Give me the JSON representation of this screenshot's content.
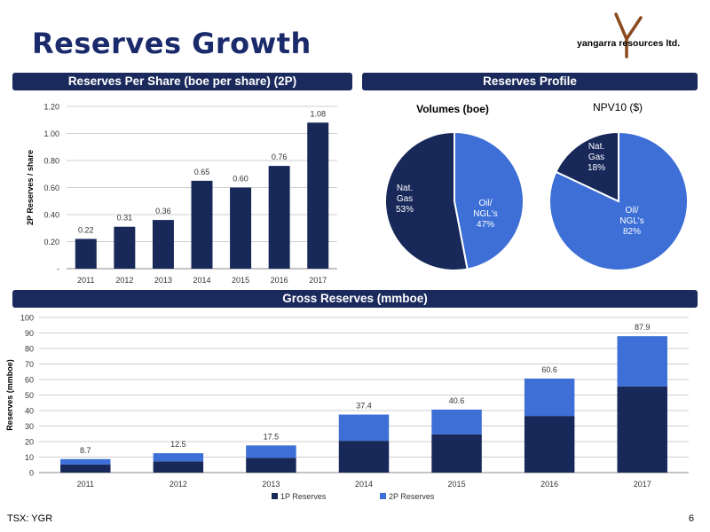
{
  "header": {
    "title": "Reserves Growth",
    "logo_text": "yangarra resources ltd."
  },
  "sections": {
    "left_banner": "Reserves Per Share (boe per share) (2P)",
    "right_banner": "Reserves Profile",
    "bottom_banner": "Gross Reserves (mmboe)"
  },
  "footer": {
    "ticker": "TSX: YGR",
    "page_number": "6"
  },
  "colors": {
    "navy": "#172859",
    "blue": "#3d6fd6",
    "banner": "#1b2a5c",
    "logo_accent": "#8a4a1e"
  },
  "chart_data": [
    {
      "type": "bar",
      "categories": [
        "2011",
        "2012",
        "2013",
        "2014",
        "2015",
        "2016",
        "2017"
      ],
      "values": [
        0.22,
        0.31,
        0.36,
        0.65,
        0.6,
        0.76,
        1.08
      ],
      "data_labels": [
        "0.22",
        "0.31",
        "0.36",
        "0.65",
        "0.60",
        "0.76",
        "1.08"
      ],
      "ylabel": "2P Reserves / share",
      "ylim": [
        0,
        1.2
      ],
      "yticks": [
        0,
        0.2,
        0.4,
        0.6,
        0.8,
        1.0,
        1.2
      ],
      "ytick_labels": [
        "-",
        "0.20",
        "0.40",
        "0.60",
        "0.80",
        "1.00",
        "1.20"
      ],
      "grid": true
    },
    {
      "type": "pie",
      "title": "Volumes (boe)",
      "slices": [
        {
          "label": "Oil/ NGL's",
          "value": 47,
          "value_label": "47%"
        },
        {
          "label": "Nat. Gas",
          "value": 53,
          "value_label": "53%"
        }
      ]
    },
    {
      "type": "pie",
      "title": "NPV10 ($)",
      "slices": [
        {
          "label": "Oil/ NGL's",
          "value": 82,
          "value_label": "82%"
        },
        {
          "label": "Nat. Gas",
          "value": 18,
          "value_label": "18%"
        }
      ]
    },
    {
      "type": "bar",
      "stacked": true,
      "categories": [
        "2011",
        "2012",
        "2013",
        "2014",
        "2015",
        "2016",
        "2017"
      ],
      "series": [
        {
          "name": "1P Reserves",
          "values": [
            5.2,
            7.2,
            9.5,
            20.5,
            24.7,
            36.5,
            55.5
          ]
        },
        {
          "name": "2P Reserves",
          "values": [
            3.5,
            5.3,
            8.0,
            16.9,
            15.9,
            24.1,
            32.4
          ]
        }
      ],
      "totals": [
        "8.7",
        "12.5",
        "17.5",
        "37.4",
        "40.6",
        "60.6",
        "87.9"
      ],
      "ylabel": "Reserves (mmboe)",
      "ylim": [
        0,
        100
      ],
      "yticks": [
        0,
        10,
        20,
        30,
        40,
        50,
        60,
        70,
        80,
        90,
        100
      ],
      "grid": true,
      "legend": "bottom"
    }
  ]
}
